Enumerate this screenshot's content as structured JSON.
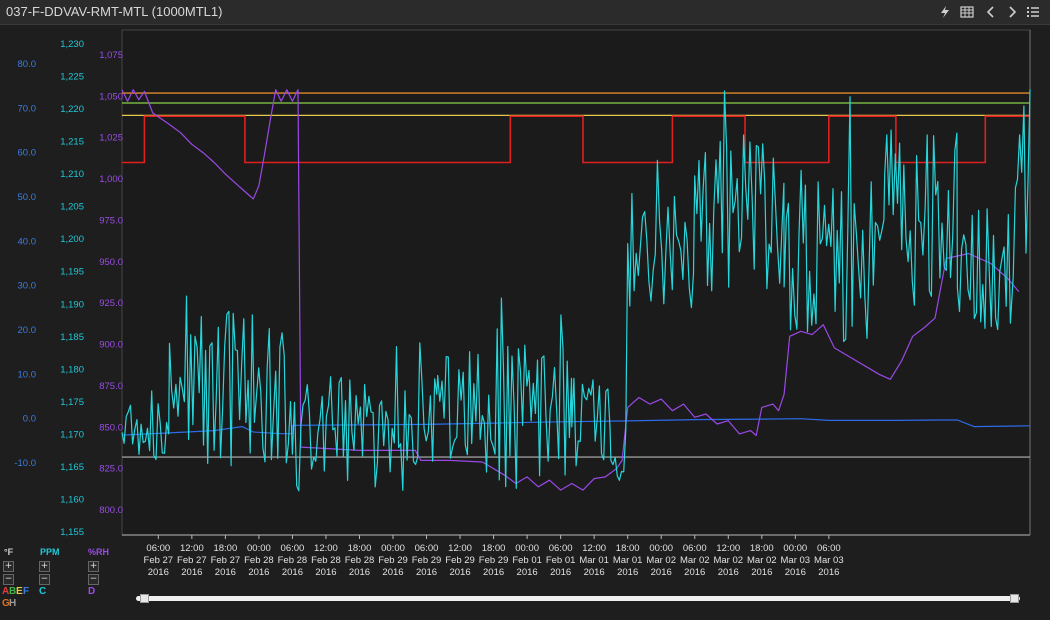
{
  "window": {
    "title": "037-F-DDVAV-RMT-MTL (1000MTL1)",
    "icons": [
      "lightning-icon",
      "table-icon",
      "chevron-left-icon",
      "chevron-right-icon",
      "list-icon"
    ]
  },
  "colors": {
    "background": "#1e1e1e",
    "temp_axis": "#3a7de0",
    "ppm_axis": "#20c8d8",
    "rh_axis": "#9a4de6",
    "series_temp": "#2d6be8",
    "series_ppm": "#27d6da",
    "series_rh": "#9b48e6",
    "limit_orange": "#e08a2a",
    "limit_green": "#8ad04a",
    "limit_yellow": "#e6c84a",
    "limit_red": "#e02020",
    "limit_gray": "#9a9a9a",
    "legend_a": "#e03a3a",
    "legend_b": "#3fb64a",
    "legend_e": "#e6c84a",
    "legend_f": "#3a7de0",
    "legend_g": "#e07020",
    "legend_h": "#9a9a9a"
  },
  "axis_controls": {
    "temp": {
      "unit": "°F",
      "plus": "+",
      "minus": "−"
    },
    "ppm": {
      "unit": "PPM",
      "plus": "+",
      "minus": "−"
    },
    "rh": {
      "unit": "%RH",
      "plus": "+",
      "minus": "−"
    }
  },
  "legend": {
    "temp_letters": [
      "A",
      "B",
      "E",
      "F"
    ],
    "temp_letters_row2": [
      "G",
      "H"
    ],
    "ppm_letter": "C",
    "rh_letter": "D"
  },
  "chart_data": {
    "type": "line",
    "x_labels": [
      [
        "06:00",
        "Feb 27",
        "2016"
      ],
      [
        "12:00",
        "Feb 27",
        "2016"
      ],
      [
        "18:00",
        "Feb 27",
        "2016"
      ],
      [
        "00:00",
        "Feb 28",
        "2016"
      ],
      [
        "06:00",
        "Feb 28",
        "2016"
      ],
      [
        "12:00",
        "Feb 28",
        "2016"
      ],
      [
        "18:00",
        "Feb 28",
        "2016"
      ],
      [
        "00:00",
        "Feb 29",
        "2016"
      ],
      [
        "06:00",
        "Feb 29",
        "2016"
      ],
      [
        "12:00",
        "Feb 29",
        "2016"
      ],
      [
        "18:00",
        "Feb 29",
        "2016"
      ],
      [
        "00:00",
        "Feb 01",
        "2016"
      ],
      [
        "06:00",
        "Feb 01",
        "2016"
      ],
      [
        "12:00",
        "Mar 01",
        "2016"
      ],
      [
        "18:00",
        "Mar 01",
        "2016"
      ],
      [
        "00:00",
        "Mar 02",
        "2016"
      ],
      [
        "06:00",
        "Mar 02",
        "2016"
      ],
      [
        "12:00",
        "Mar 02",
        "2016"
      ],
      [
        "18:00",
        "Mar 02",
        "2016"
      ],
      [
        "00:00",
        "Mar 03",
        "2016"
      ],
      [
        "06:00",
        "Mar 03",
        "2016"
      ]
    ],
    "x_range_hours": [
      -6.5,
      156
    ],
    "axes": {
      "temp": {
        "ticks": [
          "80.0",
          "70.0",
          "60.0",
          "50.0",
          "40.0",
          "30.0",
          "20.0",
          "10.0",
          "0.0",
          "-10.0"
        ],
        "min": -10,
        "max": 80
      },
      "ppm": {
        "ticks": [
          "1,230",
          "1,225",
          "1,220",
          "1,215",
          "1,210",
          "1,205",
          "1,200",
          "1,195",
          "1,190",
          "1,185",
          "1,180",
          "1,175",
          "1,170",
          "1,165",
          "1,160",
          "1,155"
        ],
        "min": 1155,
        "max": 1230
      },
      "rh": {
        "ticks": [
          "1,075",
          "1,050",
          "1,025",
          "1,000",
          "975.0",
          "950.0",
          "925.0",
          "900.0",
          "875.0",
          "850.0",
          "825.0",
          "800.0"
        ],
        "min": 800,
        "max": 1075
      }
    },
    "horizontal_lines": [
      {
        "name": "G",
        "axis": "rh",
        "value": 1052,
        "color": "#e08a2a"
      },
      {
        "name": "B",
        "axis": "rh",
        "value": 1046,
        "color": "#8ad04a"
      },
      {
        "name": "E",
        "axis": "rh",
        "value": 1038.5,
        "color": "#e6c84a"
      },
      {
        "name": "H",
        "axis": "rh",
        "value": 832,
        "color": "#9a9a9a"
      }
    ],
    "step_series": {
      "name": "A",
      "axis": "rh",
      "color": "#e02020",
      "high": 1038,
      "low": 1010,
      "points": [
        [
          -6.5,
          1010
        ],
        [
          -2.5,
          1010
        ],
        [
          -2.5,
          1038
        ],
        [
          15.5,
          1038
        ],
        [
          15.5,
          1010
        ],
        [
          63,
          1010
        ],
        [
          63,
          1038
        ],
        [
          76,
          1038
        ],
        [
          76,
          1010
        ],
        [
          92,
          1010
        ],
        [
          92,
          1038
        ],
        [
          105,
          1038
        ],
        [
          105,
          1010
        ],
        [
          120,
          1010
        ],
        [
          120,
          1038
        ],
        [
          132,
          1038
        ],
        [
          132,
          1010
        ],
        [
          148,
          1010
        ],
        [
          148,
          1038
        ],
        [
          156,
          1038
        ]
      ]
    },
    "series": [
      {
        "name": "temp",
        "axis": "temp",
        "color": "#2d6be8",
        "points": [
          [
            -6.5,
            -3.7
          ],
          [
            2,
            -3.2
          ],
          [
            10,
            -2.7
          ],
          [
            15,
            -1.8
          ],
          [
            17,
            -3.0
          ],
          [
            22,
            -3.4
          ],
          [
            23.9,
            -3.4
          ],
          [
            24,
            -1.5
          ],
          [
            36,
            -1.4
          ],
          [
            48,
            -1.3
          ],
          [
            60,
            -1.0
          ],
          [
            72,
            -0.7
          ],
          [
            84,
            -0.5
          ],
          [
            96,
            -0.2
          ],
          [
            108,
            -0.1
          ],
          [
            115,
            0.0
          ],
          [
            120,
            -0.4
          ],
          [
            132,
            -0.4
          ],
          [
            140,
            -0.3
          ],
          [
            143,
            -0.3
          ],
          [
            146,
            -1.8
          ],
          [
            156,
            -1.6
          ]
        ]
      },
      {
        "name": "rh",
        "axis": "rh",
        "color": "#9b48e6",
        "points": [
          [
            -6.5,
            1054
          ],
          [
            -5.5,
            1047
          ],
          [
            -4.5,
            1054
          ],
          [
            -3.5,
            1048
          ],
          [
            -2.5,
            1053
          ],
          [
            -1,
            1040
          ],
          [
            2,
            1033
          ],
          [
            4,
            1028
          ],
          [
            6,
            1021
          ],
          [
            8,
            1016
          ],
          [
            10,
            1010
          ],
          [
            12,
            1003
          ],
          [
            14,
            997
          ],
          [
            16,
            991
          ],
          [
            17,
            988
          ],
          [
            18,
            996
          ],
          [
            19,
            1015
          ],
          [
            20,
            1035
          ],
          [
            21,
            1054
          ],
          [
            22,
            1047
          ],
          [
            23,
            1054
          ],
          [
            24,
            1047
          ],
          [
            25,
            1054
          ],
          [
            25.5,
            838
          ],
          [
            36,
            836
          ],
          [
            46,
            836
          ],
          [
            47,
            830
          ],
          [
            52,
            830
          ],
          [
            58,
            829
          ],
          [
            62,
            821
          ],
          [
            64,
            816
          ],
          [
            66,
            820
          ],
          [
            68,
            814
          ],
          [
            70,
            818
          ],
          [
            72,
            812
          ],
          [
            74,
            816
          ],
          [
            76,
            812
          ],
          [
            78,
            819
          ],
          [
            80,
            820
          ],
          [
            82,
            825
          ],
          [
            83,
            830
          ],
          [
            84,
            862
          ],
          [
            86,
            868
          ],
          [
            88,
            864
          ],
          [
            90,
            867
          ],
          [
            92,
            860
          ],
          [
            94,
            864
          ],
          [
            96,
            856
          ],
          [
            98,
            858
          ],
          [
            100,
            852
          ],
          [
            102,
            854
          ],
          [
            104,
            846
          ],
          [
            106,
            848
          ],
          [
            107,
            845
          ],
          [
            108,
            862
          ],
          [
            110,
            864
          ],
          [
            111,
            860
          ],
          [
            112,
            870
          ],
          [
            113,
            905
          ],
          [
            115,
            908
          ],
          [
            117,
            906
          ],
          [
            119,
            912
          ],
          [
            121,
            898
          ],
          [
            123,
            894
          ],
          [
            125,
            890
          ],
          [
            127,
            886
          ],
          [
            129,
            882
          ],
          [
            131,
            879
          ],
          [
            133,
            890
          ],
          [
            135,
            905
          ],
          [
            137,
            910
          ],
          [
            139,
            916
          ],
          [
            141,
            952
          ],
          [
            145,
            955
          ],
          [
            149,
            949
          ],
          [
            152,
            940
          ],
          [
            154,
            932
          ]
        ]
      },
      {
        "name": "ppm",
        "axis": "ppm",
        "color": "#27d6da",
        "seed": 20160227,
        "segments": [
          [
            -6.5,
            1170,
            5
          ],
          [
            2,
            1177,
            12
          ],
          [
            24,
            1170,
            9
          ],
          [
            50,
            1172,
            12
          ],
          [
            74,
            1172,
            7
          ],
          [
            81,
            1167,
            5
          ],
          [
            84,
            1198,
            9
          ],
          [
            96,
            1205,
            13
          ],
          [
            112,
            1197,
            14
          ],
          [
            130,
            1203,
            14
          ],
          [
            143,
            1196,
            10
          ],
          [
            153,
            1205,
            12
          ],
          [
            156,
            1223,
            2
          ]
        ]
      }
    ]
  }
}
